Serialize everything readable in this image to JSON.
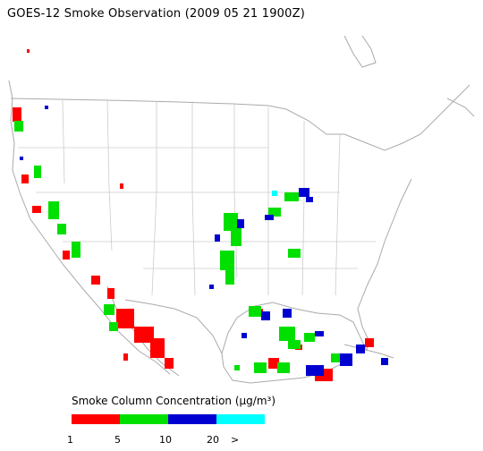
{
  "title": "GOES-12 Smoke Observation (2009 05 21  1900Z)",
  "legend": {
    "title": "Smoke Column Concentration (μg/m³)",
    "ticks": [
      "1",
      "5",
      "10",
      "20",
      ">"
    ],
    "bins": [
      {
        "range": "1-5",
        "color": "#ff0000"
      },
      {
        "range": "5-10",
        "color": "#00e000"
      },
      {
        "range": "10-20",
        "color": "#0000d0"
      },
      {
        "range": ">20",
        "color": "#00ffff"
      }
    ]
  },
  "colors": {
    "boundary": "#aaaaaa",
    "water": "#ffffff"
  }
}
